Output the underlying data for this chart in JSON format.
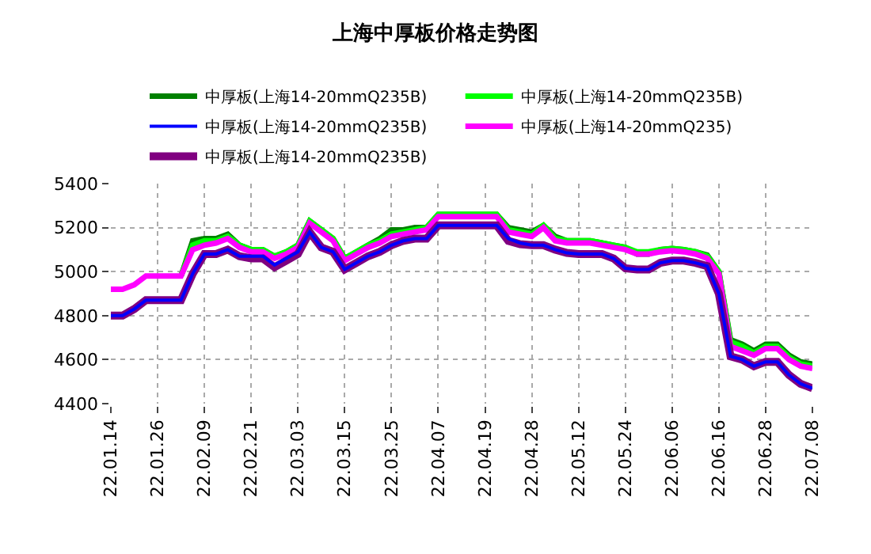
{
  "chart_data": {
    "type": "line",
    "title": "上海中厚板价格走势图",
    "categories": [
      "22.01.14",
      null,
      null,
      null,
      "22.01.26",
      null,
      null,
      null,
      "22.02.09",
      null,
      null,
      null,
      "22.02.21",
      null,
      null,
      null,
      "22.03.03",
      null,
      null,
      null,
      "22.03.15",
      null,
      null,
      null,
      "22.03.25",
      null,
      null,
      null,
      "22.04.07",
      null,
      null,
      null,
      "22.04.19",
      null,
      null,
      null,
      "22.04.28",
      null,
      null,
      null,
      "22.05.12",
      null,
      null,
      null,
      "22.05.24",
      null,
      null,
      null,
      "22.06.06",
      null,
      null,
      null,
      "22.06.16",
      null,
      null,
      null,
      "22.06.28",
      null,
      null,
      null,
      "22.07.08"
    ],
    "series": [
      {
        "name": "中厚板(上海14-20mmQ235B)",
        "color": "#008000",
        "values": [
          null,
          null,
          null,
          null,
          null,
          null,
          4980,
          5140,
          5150,
          5150,
          5170,
          5120,
          5100,
          5100,
          5070,
          5090,
          5120,
          5230,
          5190,
          5150,
          5060,
          5090,
          5120,
          5150,
          5190,
          5190,
          5200,
          5200,
          5260,
          5260,
          5260,
          5260,
          5260,
          5260,
          5200,
          5190,
          5180,
          5210,
          5160,
          5140,
          5140,
          5140,
          5130,
          5120,
          5110,
          5080,
          5080,
          5100,
          5105,
          5100,
          5090,
          5075,
          5000,
          4690,
          4670,
          4640,
          4670,
          4670,
          4620,
          4590,
          4580
        ]
      },
      {
        "name": "中厚板(上海14-20mmQ235B)",
        "color": "#00ff00",
        "values": [
          null,
          null,
          null,
          null,
          null,
          null,
          4980,
          5120,
          5140,
          5140,
          5160,
          5120,
          5100,
          5100,
          5070,
          5090,
          5120,
          5230,
          5190,
          5150,
          5060,
          5090,
          5120,
          5140,
          5170,
          5180,
          5190,
          5200,
          5260,
          5260,
          5260,
          5260,
          5260,
          5260,
          5190,
          5180,
          5170,
          5210,
          5150,
          5140,
          5140,
          5140,
          5130,
          5120,
          5110,
          5090,
          5090,
          5100,
          5105,
          5100,
          5090,
          5070,
          5000,
          4680,
          4660,
          4630,
          4660,
          4660,
          4610,
          4580,
          4570
        ]
      },
      {
        "name": "中厚板(上海14-20mmQ235B)",
        "color": "#0000ff",
        "values": [
          4800,
          4800,
          4830,
          4870,
          4870,
          4870,
          4870,
          4990,
          5080,
          5080,
          5100,
          5070,
          5070,
          5070,
          5030,
          5060,
          5090,
          5180,
          5110,
          5090,
          5010,
          5040,
          5070,
          5090,
          5120,
          5140,
          5150,
          5150,
          5210,
          5210,
          5210,
          5210,
          5210,
          5210,
          5150,
          5130,
          5120,
          5120,
          5100,
          5085,
          5080,
          5080,
          5080,
          5060,
          5015,
          5010,
          5010,
          5040,
          5050,
          5050,
          5040,
          5025,
          4900,
          4615,
          4600,
          4570,
          4590,
          4590,
          4530,
          4490,
          4470
        ]
      },
      {
        "name": "中厚板(上海14-20mmQ235)",
        "color": "#ff00ff",
        "values": [
          4920,
          4920,
          4940,
          4980,
          4980,
          4980,
          4980,
          5100,
          5120,
          5130,
          5150,
          5110,
          5090,
          5090,
          5060,
          5080,
          5110,
          5220,
          5180,
          5140,
          5050,
          5080,
          5110,
          5130,
          5160,
          5170,
          5180,
          5190,
          5250,
          5250,
          5250,
          5250,
          5250,
          5250,
          5180,
          5170,
          5160,
          5200,
          5140,
          5130,
          5130,
          5130,
          5120,
          5110,
          5100,
          5080,
          5080,
          5090,
          5095,
          5090,
          5080,
          5060,
          4990,
          4660,
          4640,
          4620,
          4650,
          4650,
          4600,
          4570,
          4560
        ]
      },
      {
        "name": "中厚板(上海14-20mmQ235B)",
        "color": "#800080",
        "values": [
          4800,
          4800,
          4830,
          4870,
          4870,
          4870,
          4870,
          4990,
          5080,
          5080,
          5100,
          5070,
          5060,
          5060,
          5020,
          5050,
          5080,
          5180,
          5110,
          5090,
          5010,
          5040,
          5070,
          5090,
          5120,
          5140,
          5150,
          5150,
          5210,
          5210,
          5210,
          5210,
          5210,
          5210,
          5140,
          5125,
          5120,
          5120,
          5100,
          5085,
          5080,
          5080,
          5080,
          5060,
          5015,
          5010,
          5010,
          5040,
          5050,
          5050,
          5040,
          5025,
          4900,
          4615,
          4600,
          4570,
          4590,
          4590,
          4530,
          4490,
          4470
        ]
      }
    ],
    "ylim": [
      4400,
      5400
    ],
    "yticks": [
      4400,
      4600,
      4800,
      5000,
      5200,
      5400
    ],
    "grid": true,
    "legend": "top",
    "marker": "none",
    "line_style": "solid"
  }
}
